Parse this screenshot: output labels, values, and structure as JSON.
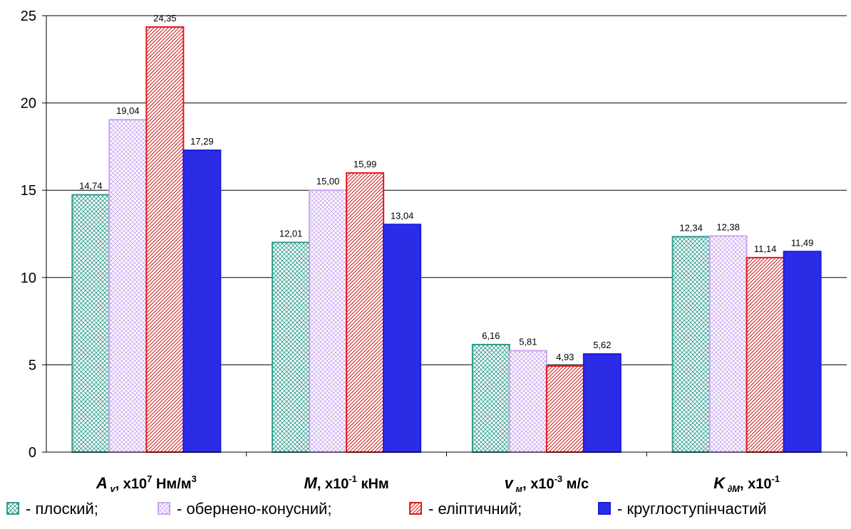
{
  "chart_data": {
    "type": "bar",
    "categories": [
      {
        "id": "av",
        "main": "A",
        "sub": "v",
        "rest": ", x10",
        "sup": "7",
        "tail": " Нм/м",
        "sup2": "3"
      },
      {
        "id": "m",
        "main": "M",
        "sub": "",
        "rest": ", x10",
        "sup": "-1",
        "tail": " кНм",
        "sup2": ""
      },
      {
        "id": "vm",
        "main": "v",
        "sub": "м",
        "rest": ", x10",
        "sup": "-3",
        "tail": " м/с",
        "sup2": ""
      },
      {
        "id": "kdm",
        "main": "K",
        "sub": "∂M",
        "rest": ", x10",
        "sup": "-1",
        "tail": "",
        "sup2": ""
      }
    ],
    "series": [
      {
        "name": "- плоский;",
        "values": [
          14.74,
          12.01,
          6.16,
          12.34
        ],
        "labels": [
          "14,74",
          "12,01",
          "6,16",
          "12,34"
        ],
        "color": "#2e9c8c",
        "pattern": "crosshatch"
      },
      {
        "name": "- обернено-конусний;",
        "values": [
          19.04,
          15.0,
          5.81,
          12.38
        ],
        "labels": [
          "19,04",
          "15,00",
          "5,81",
          "12,38"
        ],
        "color": "#c9a6f0",
        "pattern": "crosshatch"
      },
      {
        "name": "- еліптичний;",
        "values": [
          24.35,
          15.99,
          4.93,
          11.14
        ],
        "labels": [
          "24,35",
          "15,99",
          "4,93",
          "11,14"
        ],
        "color": "#e8161c",
        "pattern": "diagonal"
      },
      {
        "name": "- круглоступінчастий",
        "values": [
          17.29,
          13.04,
          5.62,
          11.49
        ],
        "labels": [
          "17,29",
          "13,04",
          "5,62",
          "11,49"
        ],
        "color": "#1c1ce0",
        "pattern": "solid"
      }
    ],
    "yticks": [
      "0",
      "5",
      "10",
      "15",
      "20",
      "25"
    ],
    "ylim": [
      0,
      25
    ],
    "grid": true,
    "legend_position": "bottom"
  }
}
